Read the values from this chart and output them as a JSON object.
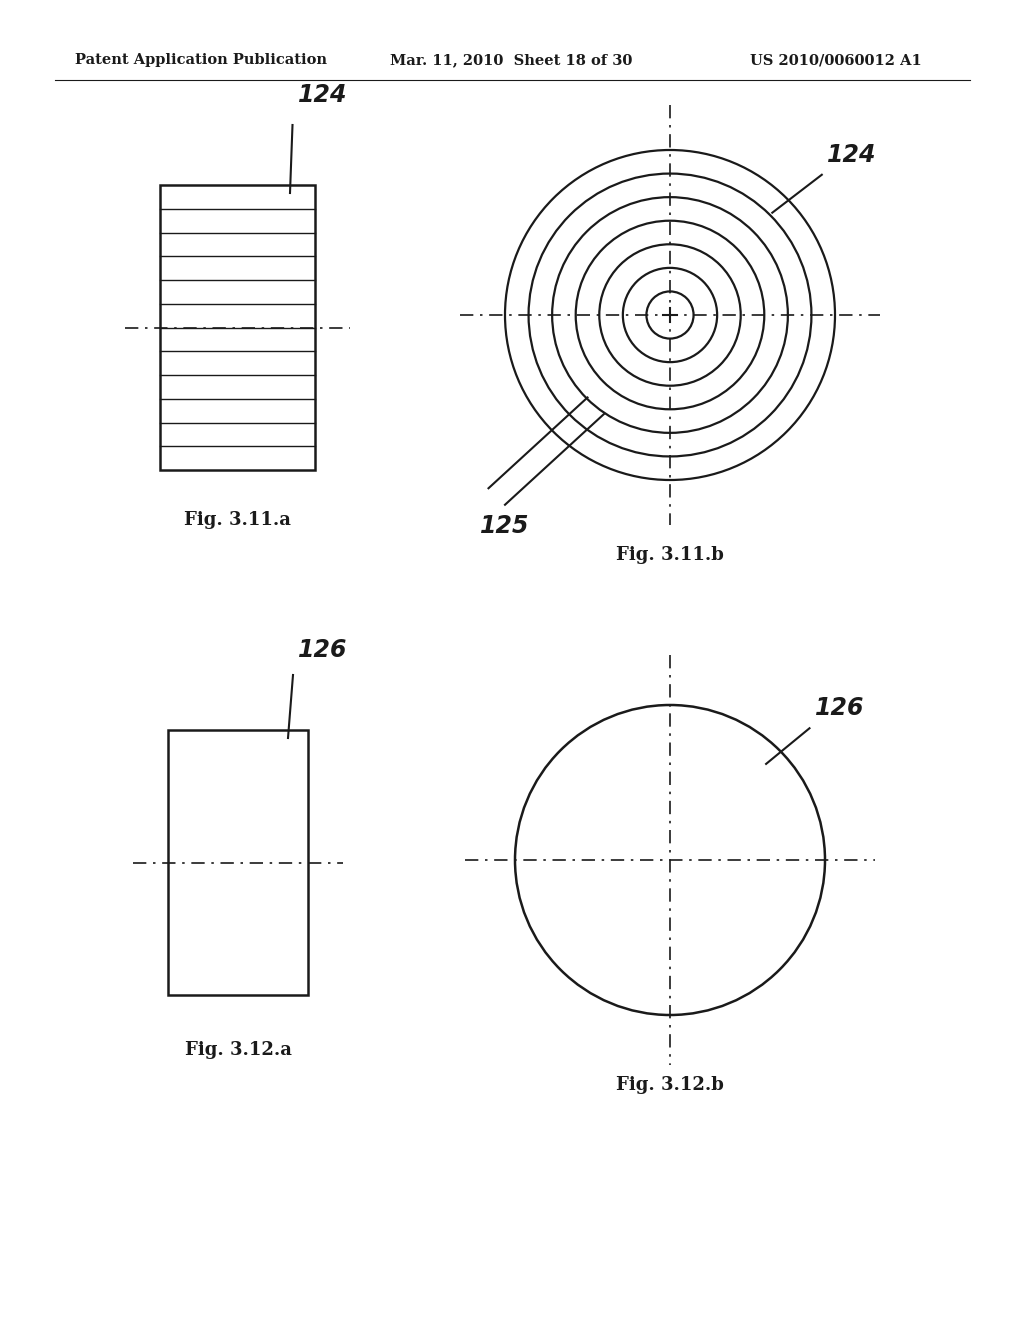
{
  "bg_color": "#ffffff",
  "header_left": "Patent Application Publication",
  "header_mid": "Mar. 11, 2010  Sheet 18 of 30",
  "header_right": "US 2010/0060012 A1",
  "fig311a_label": "Fig. 3.11.a",
  "fig311b_label": "Fig. 3.11.b",
  "fig312a_label": "Fig. 3.12.a",
  "fig312b_label": "Fig. 3.12.b",
  "ref_124_a": "124",
  "ref_124_b": "124",
  "ref_125": "125",
  "ref_126_a": "126",
  "ref_126_b": "126",
  "num_stripes_311a": 12,
  "num_circles_311b": 7,
  "text_color": "#1a1a1a",
  "line_color": "#1a1a1a"
}
